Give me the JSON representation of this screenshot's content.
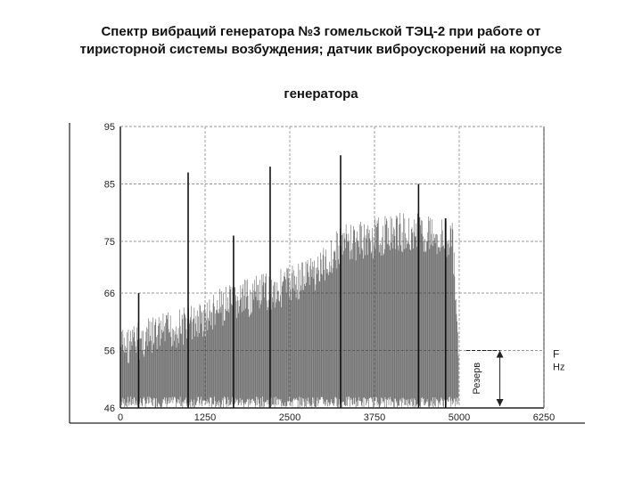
{
  "title": {
    "line1": "Спектр вибраций генератора №3 гомельской ТЭЦ-2 при работе от",
    "line2": "тиристорной системы возбуждения; датчик виброускорений на корпусе",
    "line3": "генератора"
  },
  "chart_data": {
    "type": "bar",
    "title": "Спектр вибраций генератора №3 гомельской ТЭЦ-2 при работе от тиристорной системы возбуждения; датчик виброускорений на корпусе генератора",
    "xlabel": "F Hz",
    "ylabel": "",
    "xlim": [
      0,
      6250
    ],
    "ylim": [
      46,
      95
    ],
    "x_ticks": [
      "0",
      "1250",
      "2500",
      "3750",
      "5000",
      "6250"
    ],
    "y_ticks": [
      "46",
      "56",
      "66",
      "75",
      "85",
      "95"
    ],
    "annotation": "Резерв",
    "grid": true,
    "color": "#222222",
    "peaks": [
      {
        "x": 270,
        "y": 66
      },
      {
        "x": 1000,
        "y": 87
      },
      {
        "x": 1670,
        "y": 76
      },
      {
        "x": 2210,
        "y": 88
      },
      {
        "x": 3250,
        "y": 90
      },
      {
        "x": 4400,
        "y": 85
      },
      {
        "x": 4800,
        "y": 79
      }
    ],
    "envelope": {
      "x": [
        0,
        500,
        1000,
        1250,
        1500,
        2000,
        2500,
        3000,
        3250,
        3750,
        4000,
        4500,
        4900,
        5000
      ],
      "y": [
        60,
        62,
        64,
        65,
        67,
        69,
        71,
        74,
        78,
        79,
        80,
        80,
        79,
        55
      ]
    }
  }
}
